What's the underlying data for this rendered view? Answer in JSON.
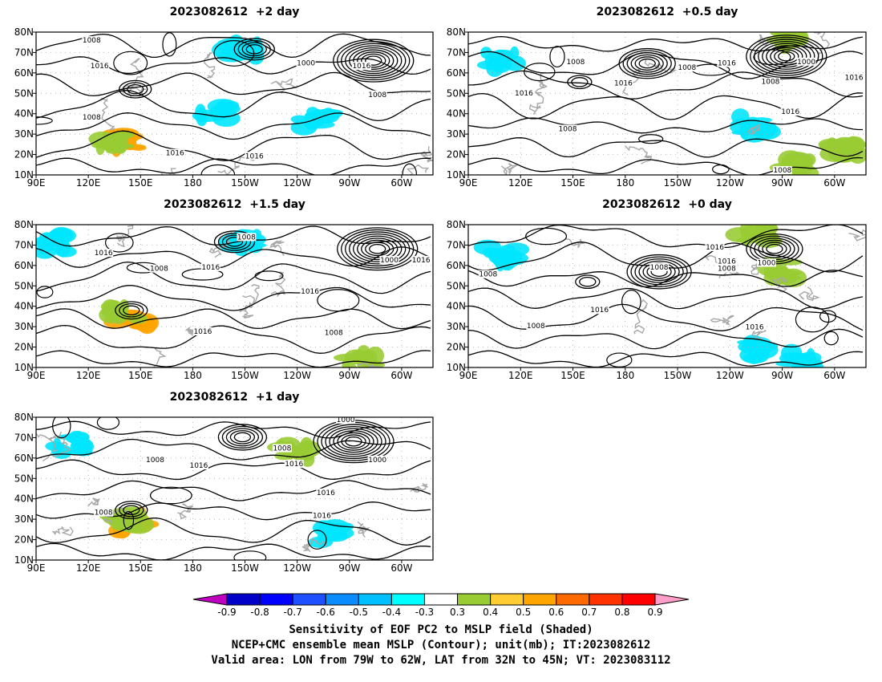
{
  "chart_data": {
    "type": "heatmap",
    "description_fields": "shaded sensitivity field with MSLP contours, 5 panels",
    "panels": [
      {
        "title": "2023082612  +2 day",
        "lead_days": 2,
        "contour_labels": [
          "1008",
          "1016",
          "1008",
          "1000",
          "1016",
          "1008",
          "1016",
          "1016"
        ]
      },
      {
        "title": "2023082612  +0.5 day",
        "lead_days": 0.5,
        "contour_labels": [
          "1008",
          "1008",
          "1016",
          "1016",
          "1016",
          "1000",
          "1008",
          "1016",
          "1016",
          "1008",
          "1008"
        ]
      },
      {
        "title": "2023082612  +1.5 day",
        "lead_days": 1.5,
        "contour_labels": [
          "1008",
          "1016",
          "1008",
          "1016",
          "1000",
          "1016",
          "1016",
          "1016",
          "1008"
        ]
      },
      {
        "title": "2023082612  +0 day",
        "lead_days": 0,
        "contour_labels": [
          "1016",
          "1008",
          "1016",
          "1008",
          "1000",
          "1008",
          "1016",
          "1008",
          "1016"
        ]
      },
      {
        "title": "2023082612  +1 day",
        "lead_days": 1,
        "contour_labels": [
          "1000",
          "1008",
          "1008",
          "1016",
          "1016",
          "1000",
          "1016",
          "1008",
          "1016"
        ]
      }
    ],
    "x_axis": {
      "ticks": [
        "90E",
        "120E",
        "150E",
        "180",
        "150W",
        "120W",
        "90W",
        "60W"
      ]
    },
    "y_axis": {
      "ticks": [
        "10N",
        "20N",
        "30N",
        "40N",
        "50N",
        "60N",
        "70N",
        "80N"
      ],
      "ylim": [
        10,
        80
      ]
    },
    "colorbar": {
      "levels": [
        "-0.9",
        "-0.8",
        "-0.7",
        "-0.6",
        "-0.5",
        "-0.4",
        "-0.3",
        "0.3",
        "0.4",
        "0.5",
        "0.6",
        "0.7",
        "0.8",
        "0.9"
      ],
      "colors": [
        "#c000c0",
        "#0000c8",
        "#0000ff",
        "#1e50ff",
        "#0a8cff",
        "#00c0ff",
        "#00ffff",
        "#ffffff",
        "#99cc33",
        "#ffcc33",
        "#ffa500",
        "#ff6a00",
        "#ff3300",
        "#ff0000",
        "#ff9ec8"
      ]
    },
    "caption": [
      "Sensitivity of EOF PC2 to MSLP field (Shaded)",
      "NCEP+CMC ensemble mean MSLP (Contour); unit(mb); IT:2023082612",
      "Valid area: LON from 79W to 62W, LAT from 32N to 45N; VT: 2023083112"
    ]
  }
}
